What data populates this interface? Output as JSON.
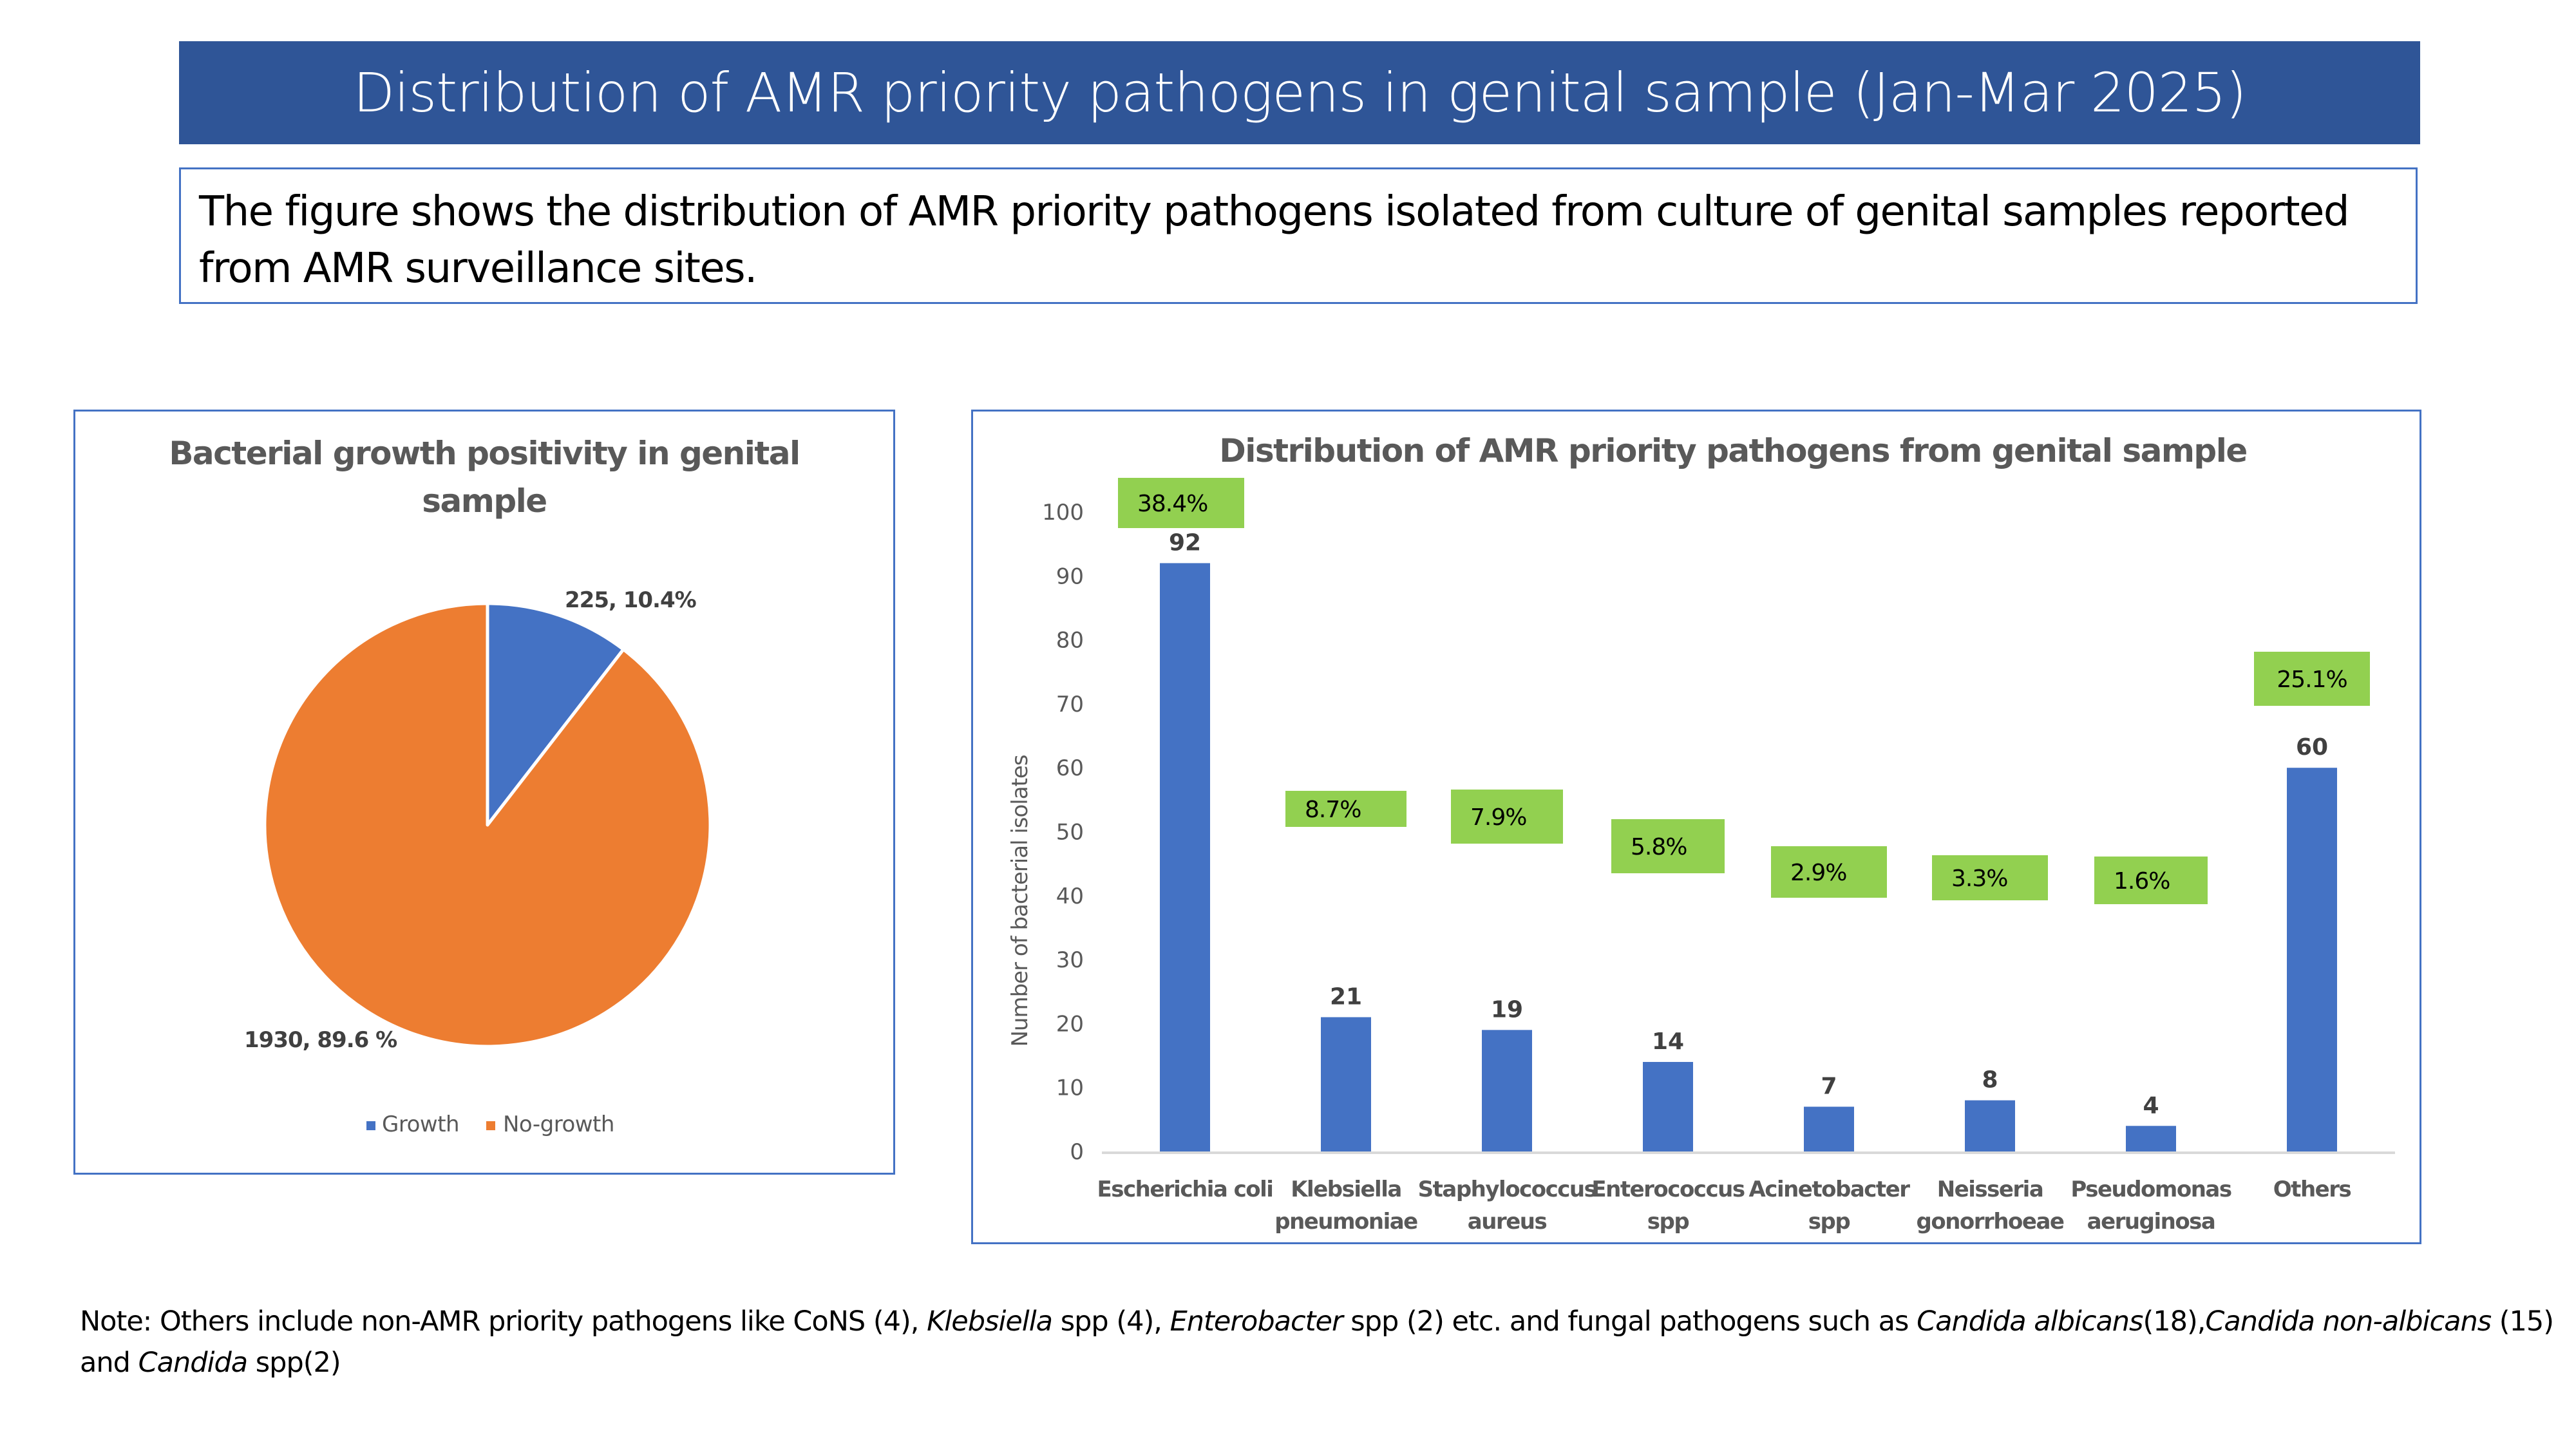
{
  "page": {
    "title": "Distribution of AMR priority pathogens in genital sample (Jan-Mar 2025)",
    "description": "The figure shows the distribution of AMR priority pathogens isolated from culture of genital samples reported from AMR surveillance sites.",
    "note": {
      "parts": [
        {
          "text": "Note: Others include non-AMR priority pathogens like CoNS (4), ",
          "italic": false
        },
        {
          "text": "Klebsiella",
          "italic": true
        },
        {
          "text": " spp (4), ",
          "italic": false
        },
        {
          "text": "Enterobacter",
          "italic": true
        },
        {
          "text": " spp (2) etc. and fungal pathogens such as ",
          "italic": false
        },
        {
          "text": "Candida albicans",
          "italic": true
        },
        {
          "text": "(18),",
          "italic": false
        },
        {
          "text": "Candida non-albicans",
          "italic": true
        },
        {
          "text": " (15) and ",
          "italic": false
        },
        {
          "text": "Candida",
          "italic": true
        },
        {
          "text": " spp(2)",
          "italic": false
        }
      ]
    }
  },
  "colors": {
    "banner": "#2f5597",
    "border": "#4472c4",
    "bar": "#4472c4",
    "growth": "#4472c4",
    "no_growth": "#ed7d31",
    "pct_box": "#92d050",
    "title_text": "#595959",
    "axis_text": "#595959",
    "label_text": "#404040",
    "axis_line": "#d9d9d9"
  },
  "chart_data": [
    {
      "type": "pie",
      "title_lines": [
        "Bacterial growth positivity in genital",
        "sample"
      ],
      "slices": [
        {
          "name": "Growth",
          "value": 225,
          "percent": 10.4,
          "label": "225, 10.4%"
        },
        {
          "name": "No-growth",
          "value": 1930,
          "percent": 89.6,
          "label": "1930, 89.6 %"
        }
      ],
      "legend": [
        "Growth",
        "No-growth"
      ],
      "legend_position": "bottom"
    },
    {
      "type": "bar",
      "title": "Distribution of AMR priority pathogens from genital sample",
      "ylabel": "Number of bacterial isolates",
      "xlabel": "",
      "ylim": [
        0,
        100
      ],
      "yticks": [
        0,
        10,
        20,
        30,
        40,
        50,
        60,
        70,
        80,
        90,
        100
      ],
      "grid": false,
      "categories": [
        [
          "Escherichia coli"
        ],
        [
          "Klebsiella",
          "pneumoniae"
        ],
        [
          "Staphylococcus",
          "aureus"
        ],
        [
          "Enterococcus",
          "spp"
        ],
        [
          "Acinetobacter",
          "spp"
        ],
        [
          "Neisseria",
          "gonorrhoeae"
        ],
        [
          "Pseudomonas",
          "aeruginosa"
        ],
        [
          "Others"
        ]
      ],
      "values": [
        92,
        21,
        19,
        14,
        7,
        8,
        4,
        60
      ],
      "percent_labels": [
        "38.4%",
        "8.7%",
        "7.9%",
        "5.8%",
        "2.9%",
        "3.3%",
        "1.6%",
        "25.1%"
      ]
    }
  ]
}
